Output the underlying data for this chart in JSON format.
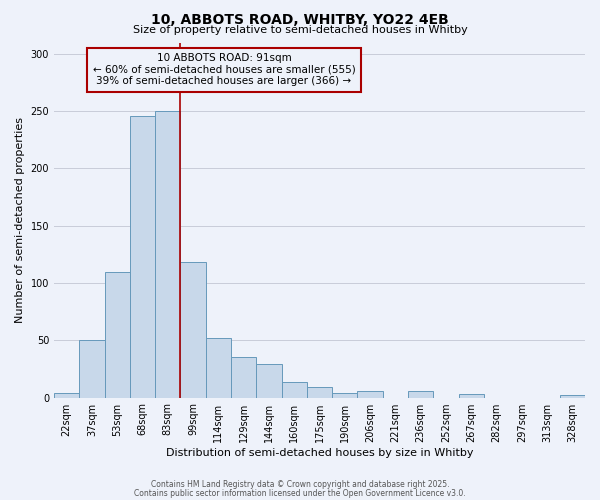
{
  "title_line1": "10, ABBOTS ROAD, WHITBY, YO22 4EB",
  "title_line2": "Size of property relative to semi-detached houses in Whitby",
  "xlabel": "Distribution of semi-detached houses by size in Whitby",
  "ylabel": "Number of semi-detached properties",
  "bar_labels": [
    "22sqm",
    "37sqm",
    "53sqm",
    "68sqm",
    "83sqm",
    "99sqm",
    "114sqm",
    "129sqm",
    "144sqm",
    "160sqm",
    "175sqm",
    "190sqm",
    "206sqm",
    "221sqm",
    "236sqm",
    "252sqm",
    "267sqm",
    "282sqm",
    "297sqm",
    "313sqm",
    "328sqm"
  ],
  "bar_values": [
    4,
    50,
    110,
    246,
    250,
    118,
    52,
    35,
    29,
    14,
    9,
    4,
    6,
    0,
    6,
    0,
    3,
    0,
    0,
    0,
    2
  ],
  "bar_color": "#c8d8ea",
  "bar_edge_color": "#6699bb",
  "vline_color": "#aa0000",
  "vline_x": 4.5,
  "annotation_box_edge": "#aa0000",
  "annotation_box_bg": "#eef2fa",
  "ylim": [
    0,
    310
  ],
  "yticks": [
    0,
    50,
    100,
    150,
    200,
    250,
    300
  ],
  "property_label": "10 ABBOTS ROAD: 91sqm",
  "pct_smaller": 60,
  "n_smaller": 555,
  "pct_larger": 39,
  "n_larger": 366,
  "bg_color": "#eef2fa",
  "grid_color": "#c8ccd8",
  "footer_line1": "Contains HM Land Registry data © Crown copyright and database right 2025.",
  "footer_line2": "Contains public sector information licensed under the Open Government Licence v3.0."
}
